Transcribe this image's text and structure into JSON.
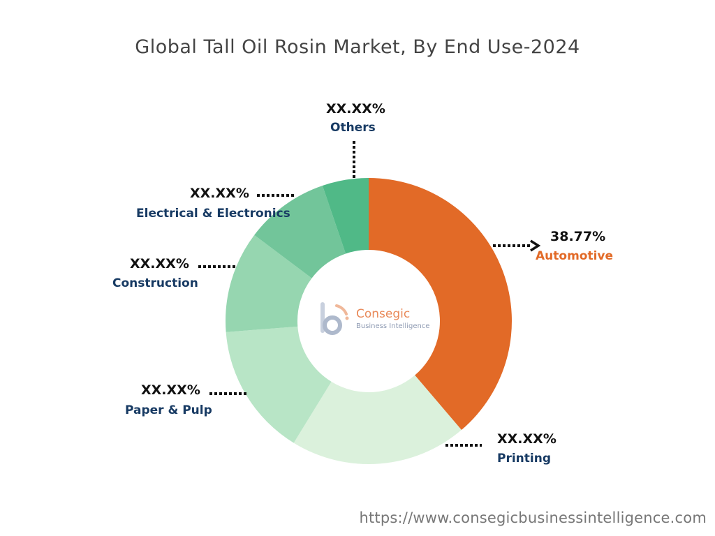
{
  "title": "Global Tall Oil Rosin Market, By End Use-2024",
  "chart_data": {
    "type": "pie",
    "title": "Global Tall Oil Rosin Market, By End Use-2024",
    "donut": true,
    "segments": [
      {
        "label": "Automotive",
        "percent_text": "38.77%",
        "value": 38.77,
        "color": "#e26a27"
      },
      {
        "label": "Printing",
        "percent_text": "XX.XX%",
        "value": 20.0,
        "color": "#dbf1dc"
      },
      {
        "label": "Paper & Pulp",
        "percent_text": "XX.XX%",
        "value": 15.0,
        "color": "#b8e5c6"
      },
      {
        "label": "Construction",
        "percent_text": "XX.XX%",
        "value": 11.5,
        "color": "#96d6b0"
      },
      {
        "label": "Electrical & Electronics",
        "percent_text": "XX.XX%",
        "value": 9.5,
        "color": "#72c59a"
      },
      {
        "label": "Others",
        "percent_text": "XX.XX%",
        "value": 5.23,
        "color": "#50b987"
      }
    ]
  },
  "logo": {
    "name": "Consegic",
    "tagline": "Business Intelligence"
  },
  "footer": {
    "url": "https://www.consegicbusinessintelligence.com"
  }
}
